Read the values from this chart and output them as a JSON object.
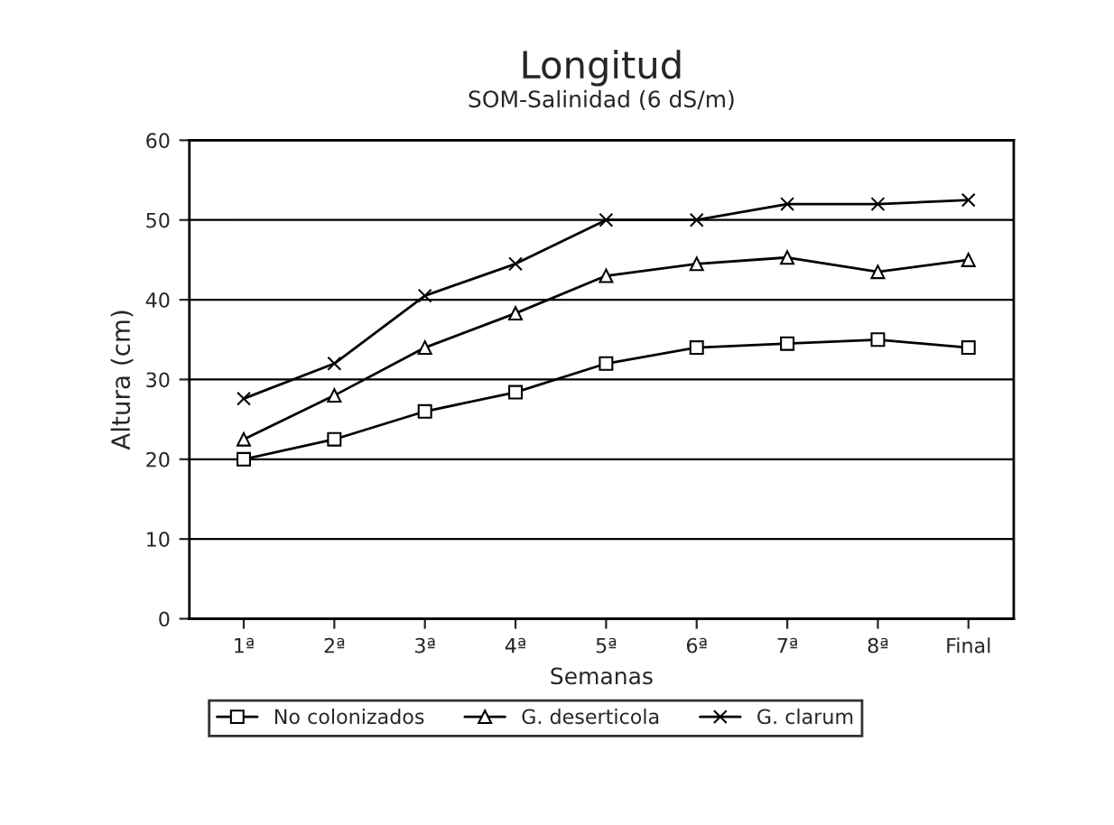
{
  "chart_data": {
    "type": "line",
    "title": "Longitud",
    "subtitle": "SOM-Salinidad (6 dS/m)",
    "xlabel": "Semanas",
    "ylabel": "Altura (cm)",
    "categories": [
      "1ª",
      "2ª",
      "3ª",
      "4ª",
      "5ª",
      "6ª",
      "7ª",
      "8ª",
      "Final"
    ],
    "series": [
      {
        "name": "No colonizados",
        "color": "#000000",
        "marker": "square",
        "values": [
          20,
          22.5,
          26,
          28.4,
          32,
          34,
          34.5,
          35,
          34
        ]
      },
      {
        "name": "G. deserticola",
        "color": "#000000",
        "marker": "triangle",
        "values": [
          22.5,
          28,
          34,
          38.3,
          43,
          44.5,
          45.3,
          43.5,
          45
        ]
      },
      {
        "name": "G. clarum",
        "color": "#000000",
        "marker": "cross",
        "values": [
          27.6,
          32,
          40.5,
          44.5,
          50,
          50,
          52,
          52,
          52.5
        ]
      }
    ],
    "ylim": [
      0,
      60
    ],
    "yticks": [
      0,
      10,
      20,
      30,
      40,
      50,
      60
    ],
    "grid": "y",
    "legend": "bottom",
    "line_style": "solid"
  }
}
